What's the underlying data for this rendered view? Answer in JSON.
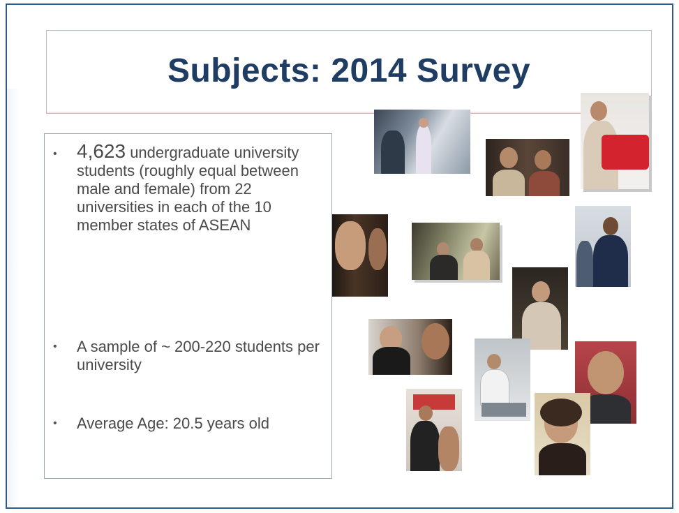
{
  "slide": {
    "title": "Subjects: 2014 Survey",
    "bullets": [
      {
        "lead": "4,623",
        "text": " undergraduate university students (roughly equal between male and female) from 22 universities in each of the 10 member states of ASEAN"
      },
      {
        "lead": "",
        "text": "A sample of ~ 200-220 students per university"
      },
      {
        "lead": "",
        "text": "Average Age: 20.5 years old"
      }
    ],
    "bullet_glyph": "•"
  },
  "colors": {
    "title": "#1f3d63",
    "frame": "#2f5a8c",
    "body_text": "#4a4a4a"
  }
}
